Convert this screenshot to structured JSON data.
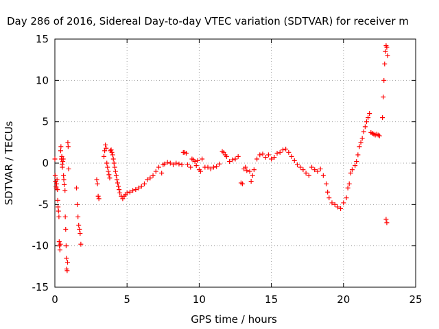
{
  "chart_data": {
    "type": "scatter",
    "title": "Day 286 of 2016, Sidereal Day-to-day VTEC variation (SDTVAR) for receiver m",
    "xlabel": "GPS time / hours",
    "ylabel": "SDTVAR / TECUs",
    "xlim": [
      0,
      25
    ],
    "ylim": [
      -15,
      15
    ],
    "xticks": [
      0,
      5,
      10,
      15,
      20,
      25
    ],
    "yticks": [
      -15,
      -10,
      -5,
      0,
      5,
      10,
      15
    ],
    "grid": true,
    "marker": "+",
    "series_color": "#ff0000",
    "series": [
      {
        "name": "SDTVAR",
        "points": [
          [
            0.0,
            0.5
          ],
          [
            0.02,
            -1.5
          ],
          [
            0.05,
            -2.2
          ],
          [
            0.08,
            -2.8
          ],
          [
            0.1,
            -3.0
          ],
          [
            0.12,
            -2.5
          ],
          [
            0.15,
            -2.0
          ],
          [
            0.18,
            -3.2
          ],
          [
            0.2,
            -4.5
          ],
          [
            0.22,
            -5.3
          ],
          [
            0.25,
            -5.8
          ],
          [
            0.28,
            -6.5
          ],
          [
            0.3,
            -9.5
          ],
          [
            0.32,
            -10.0
          ],
          [
            0.35,
            -10.5
          ],
          [
            0.38,
            -9.8
          ],
          [
            0.4,
            1.5
          ],
          [
            0.42,
            2.0
          ],
          [
            0.45,
            0.5
          ],
          [
            0.48,
            0.8
          ],
          [
            0.5,
            -0.2
          ],
          [
            0.52,
            -0.5
          ],
          [
            0.55,
            0.2
          ],
          [
            0.58,
            0.5
          ],
          [
            0.6,
            -1.5
          ],
          [
            0.62,
            -2.0
          ],
          [
            0.65,
            -2.6
          ],
          [
            0.7,
            -3.3
          ],
          [
            0.72,
            -6.5
          ],
          [
            0.75,
            -8.0
          ],
          [
            0.78,
            -10.0
          ],
          [
            0.8,
            -11.5
          ],
          [
            0.82,
            -12.8
          ],
          [
            0.85,
            -13.0
          ],
          [
            0.88,
            -12.0
          ],
          [
            0.9,
            2.5
          ],
          [
            0.92,
            2.0
          ],
          [
            0.95,
            -0.7
          ],
          [
            1.5,
            -3.0
          ],
          [
            1.55,
            -5.0
          ],
          [
            1.6,
            -6.5
          ],
          [
            1.65,
            -7.5
          ],
          [
            1.7,
            -8.0
          ],
          [
            1.75,
            -8.5
          ],
          [
            1.8,
            -9.8
          ],
          [
            2.9,
            -2.0
          ],
          [
            2.95,
            -2.5
          ],
          [
            3.0,
            -4.0
          ],
          [
            3.05,
            -4.3
          ],
          [
            3.4,
            0.8
          ],
          [
            3.45,
            1.5
          ],
          [
            3.5,
            2.2
          ],
          [
            3.55,
            1.8
          ],
          [
            3.6,
            0.0
          ],
          [
            3.65,
            -0.5
          ],
          [
            3.7,
            -1.0
          ],
          [
            3.75,
            -1.4
          ],
          [
            3.8,
            -1.8
          ],
          [
            3.85,
            1.5
          ],
          [
            3.9,
            1.6
          ],
          [
            3.95,
            1.3
          ],
          [
            4.0,
            1.0
          ],
          [
            4.05,
            0.5
          ],
          [
            4.1,
            0.0
          ],
          [
            4.15,
            -0.5
          ],
          [
            4.2,
            -1.0
          ],
          [
            4.25,
            -1.5
          ],
          [
            4.3,
            -2.0
          ],
          [
            4.35,
            -2.4
          ],
          [
            4.4,
            -2.8
          ],
          [
            4.45,
            -3.2
          ],
          [
            4.5,
            -3.6
          ],
          [
            4.6,
            -4.0
          ],
          [
            4.7,
            -4.3
          ],
          [
            4.8,
            -4.0
          ],
          [
            4.9,
            -3.8
          ],
          [
            5.0,
            -3.6
          ],
          [
            5.2,
            -3.5
          ],
          [
            5.4,
            -3.3
          ],
          [
            5.6,
            -3.2
          ],
          [
            5.8,
            -3.0
          ],
          [
            6.0,
            -2.8
          ],
          [
            6.2,
            -2.5
          ],
          [
            6.4,
            -2.0
          ],
          [
            6.6,
            -1.8
          ],
          [
            6.8,
            -1.5
          ],
          [
            7.0,
            -1.0
          ],
          [
            7.2,
            -0.5
          ],
          [
            7.4,
            -1.2
          ],
          [
            7.5,
            -0.2
          ],
          [
            7.6,
            -0.1
          ],
          [
            7.8,
            0.1
          ],
          [
            8.0,
            0.0
          ],
          [
            8.2,
            -0.2
          ],
          [
            8.4,
            0.0
          ],
          [
            8.6,
            -0.1
          ],
          [
            8.8,
            -0.2
          ],
          [
            8.9,
            1.3
          ],
          [
            9.0,
            1.3
          ],
          [
            9.1,
            1.2
          ],
          [
            9.2,
            -0.2
          ],
          [
            9.4,
            -0.5
          ],
          [
            9.5,
            0.5
          ],
          [
            9.6,
            0.4
          ],
          [
            9.7,
            0.2
          ],
          [
            9.8,
            -0.3
          ],
          [
            9.9,
            0.3
          ],
          [
            10.0,
            -0.8
          ],
          [
            10.1,
            -1.0
          ],
          [
            10.2,
            0.5
          ],
          [
            10.4,
            -0.5
          ],
          [
            10.6,
            -0.5
          ],
          [
            10.8,
            -0.7
          ],
          [
            11.0,
            -0.5
          ],
          [
            11.2,
            -0.4
          ],
          [
            11.4,
            -0.1
          ],
          [
            11.6,
            1.4
          ],
          [
            11.7,
            1.3
          ],
          [
            11.8,
            1.0
          ],
          [
            11.9,
            0.8
          ],
          [
            12.1,
            0.2
          ],
          [
            12.3,
            0.4
          ],
          [
            12.5,
            0.5
          ],
          [
            12.7,
            0.8
          ],
          [
            12.9,
            -2.4
          ],
          [
            13.0,
            -2.5
          ],
          [
            13.1,
            -0.7
          ],
          [
            13.2,
            -0.5
          ],
          [
            13.3,
            -0.9
          ],
          [
            13.5,
            -1.0
          ],
          [
            13.6,
            -2.2
          ],
          [
            13.7,
            -1.5
          ],
          [
            13.8,
            -0.8
          ],
          [
            14.0,
            0.5
          ],
          [
            14.2,
            1.0
          ],
          [
            14.4,
            1.1
          ],
          [
            14.6,
            0.7
          ],
          [
            14.8,
            1.0
          ],
          [
            15.0,
            0.5
          ],
          [
            15.2,
            0.7
          ],
          [
            15.4,
            1.2
          ],
          [
            15.6,
            1.3
          ],
          [
            15.8,
            1.6
          ],
          [
            16.0,
            1.7
          ],
          [
            16.2,
            1.3
          ],
          [
            16.4,
            0.8
          ],
          [
            16.6,
            0.3
          ],
          [
            16.8,
            -0.2
          ],
          [
            17.0,
            -0.5
          ],
          [
            17.2,
            -0.8
          ],
          [
            17.4,
            -1.2
          ],
          [
            17.6,
            -1.5
          ],
          [
            17.8,
            -0.5
          ],
          [
            18.0,
            -0.8
          ],
          [
            18.2,
            -1.0
          ],
          [
            18.4,
            -0.7
          ],
          [
            18.6,
            -1.5
          ],
          [
            18.8,
            -2.5
          ],
          [
            18.9,
            -3.5
          ],
          [
            19.0,
            -4.2
          ],
          [
            19.2,
            -4.8
          ],
          [
            19.4,
            -5.0
          ],
          [
            19.6,
            -5.3
          ],
          [
            19.8,
            -5.5
          ],
          [
            20.0,
            -4.8
          ],
          [
            20.2,
            -4.2
          ],
          [
            20.3,
            -3.0
          ],
          [
            20.4,
            -2.5
          ],
          [
            20.5,
            -1.2
          ],
          [
            20.6,
            -0.8
          ],
          [
            20.8,
            -0.3
          ],
          [
            20.9,
            0.2
          ],
          [
            21.0,
            1.0
          ],
          [
            21.1,
            2.0
          ],
          [
            21.2,
            2.5
          ],
          [
            21.3,
            3.0
          ],
          [
            21.4,
            3.8
          ],
          [
            21.5,
            4.4
          ],
          [
            21.6,
            5.0
          ],
          [
            21.7,
            5.5
          ],
          [
            21.8,
            6.0
          ],
          [
            21.9,
            3.7
          ],
          [
            22.0,
            3.6
          ],
          [
            22.1,
            3.5
          ],
          [
            22.2,
            3.4
          ],
          [
            22.3,
            3.5
          ],
          [
            22.4,
            3.4
          ],
          [
            22.5,
            3.3
          ],
          [
            22.7,
            5.5
          ],
          [
            22.75,
            8.0
          ],
          [
            22.8,
            10.0
          ],
          [
            22.85,
            12.0
          ],
          [
            22.9,
            13.5
          ],
          [
            22.95,
            14.2
          ],
          [
            23.0,
            14.0
          ],
          [
            23.05,
            13.0
          ],
          [
            22.95,
            -6.8
          ],
          [
            23.0,
            -7.2
          ]
        ]
      }
    ]
  }
}
